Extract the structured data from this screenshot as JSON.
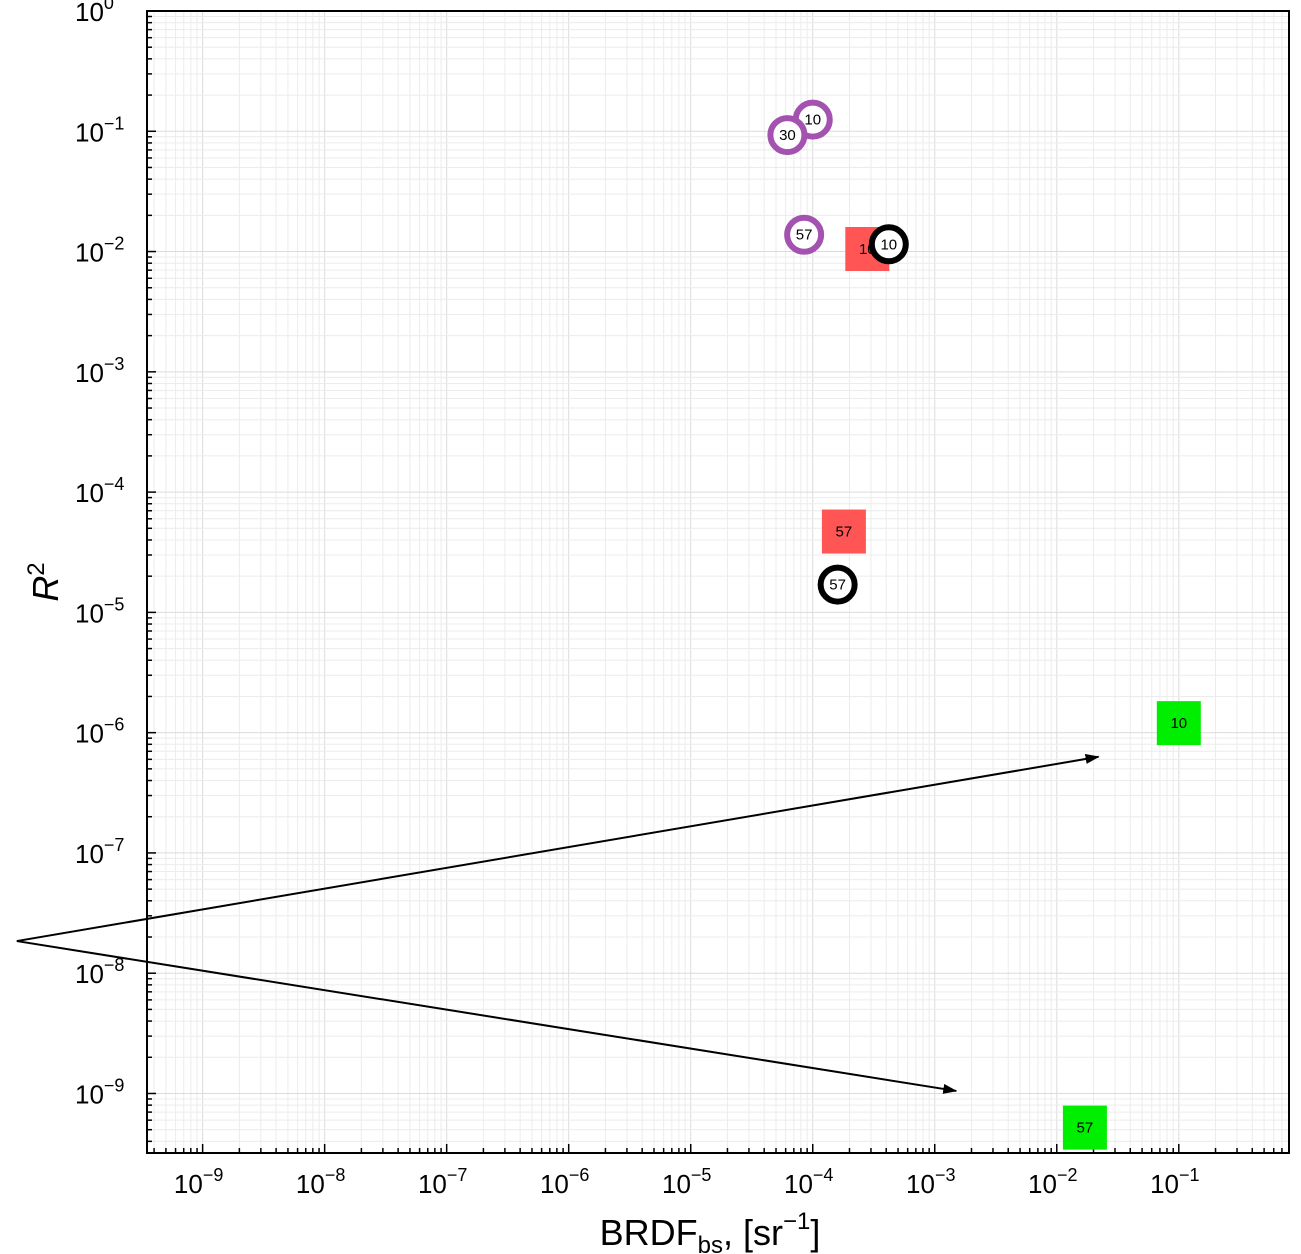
{
  "chart_data": {
    "type": "scatter",
    "title": "",
    "xlabel": {
      "base": "BRDF",
      "sub": "bs",
      "suffix": ", [sr",
      "sup": "−1",
      "close": "]"
    },
    "ylabel": {
      "base": "R",
      "sup": "2"
    },
    "x_scale": "log",
    "y_scale": "log",
    "xlim": [
      3.5e-10,
      0.8
    ],
    "ylim": [
      3.2e-10,
      1.0
    ],
    "grid": true,
    "x_ticks": [
      {
        "base": "10",
        "exp": "−9",
        "value": 1e-09
      },
      {
        "base": "10",
        "exp": "−8",
        "value": 1e-08
      },
      {
        "base": "10",
        "exp": "−7",
        "value": 1e-07
      },
      {
        "base": "10",
        "exp": "−6",
        "value": 1e-06
      },
      {
        "base": "10",
        "exp": "−5",
        "value": 1e-05
      },
      {
        "base": "10",
        "exp": "−4",
        "value": 0.0001
      },
      {
        "base": "10",
        "exp": "−3",
        "value": 0.001
      },
      {
        "base": "10",
        "exp": "−2",
        "value": 0.01
      },
      {
        "base": "10",
        "exp": "−1",
        "value": 0.1
      }
    ],
    "y_ticks": [
      {
        "base": "10",
        "exp": "0",
        "value": 1
      },
      {
        "base": "10",
        "exp": "−1",
        "value": 0.1
      },
      {
        "base": "10",
        "exp": "−2",
        "value": 0.01
      },
      {
        "base": "10",
        "exp": "−3",
        "value": 0.001
      },
      {
        "base": "10",
        "exp": "−4",
        "value": 0.0001
      },
      {
        "base": "10",
        "exp": "−5",
        "value": 1e-05
      },
      {
        "base": "10",
        "exp": "−6",
        "value": 1e-06
      },
      {
        "base": "10",
        "exp": "−7",
        "value": 1e-07
      },
      {
        "base": "10",
        "exp": "−8",
        "value": 1e-08
      },
      {
        "base": "10",
        "exp": "−9",
        "value": 1e-09
      }
    ],
    "series": [
      {
        "marker": "square",
        "color": "#ff5555",
        "points": [
          {
            "x": 0.00028,
            "y": 0.0105,
            "label": "10"
          },
          {
            "x": 0.00018,
            "y": 4.7e-05,
            "label": "57"
          }
        ]
      },
      {
        "marker": "ring",
        "color": "#000000",
        "points": [
          {
            "x": 0.00042,
            "y": 0.0115,
            "label": "10"
          },
          {
            "x": 0.00016,
            "y": 1.7e-05,
            "label": "57"
          }
        ]
      },
      {
        "marker": "ring",
        "color": "#a352b0",
        "points": [
          {
            "x": 0.0001,
            "y": 0.125,
            "label": "10"
          },
          {
            "x": 6.2e-05,
            "y": 0.093,
            "label": "30"
          },
          {
            "x": 8.5e-05,
            "y": 0.0138,
            "label": "57"
          }
        ]
      },
      {
        "marker": "square",
        "color": "#00ee00",
        "points": [
          {
            "x": 0.1,
            "y": 1.2e-06,
            "label": "10"
          },
          {
            "x": 0.017,
            "y": 5.2e-10,
            "label": "57"
          }
        ]
      }
    ],
    "annotations": [
      {
        "type": "arrow",
        "from": {
          "x": 3e-11,
          "y": 1.85e-08
        },
        "to": {
          "x": 0.022,
          "y": 6.3e-07
        }
      },
      {
        "type": "arrow",
        "from": {
          "x": 3e-11,
          "y": 1.85e-08
        },
        "to": {
          "x": 0.0015,
          "y": 1.05e-09
        }
      }
    ]
  }
}
